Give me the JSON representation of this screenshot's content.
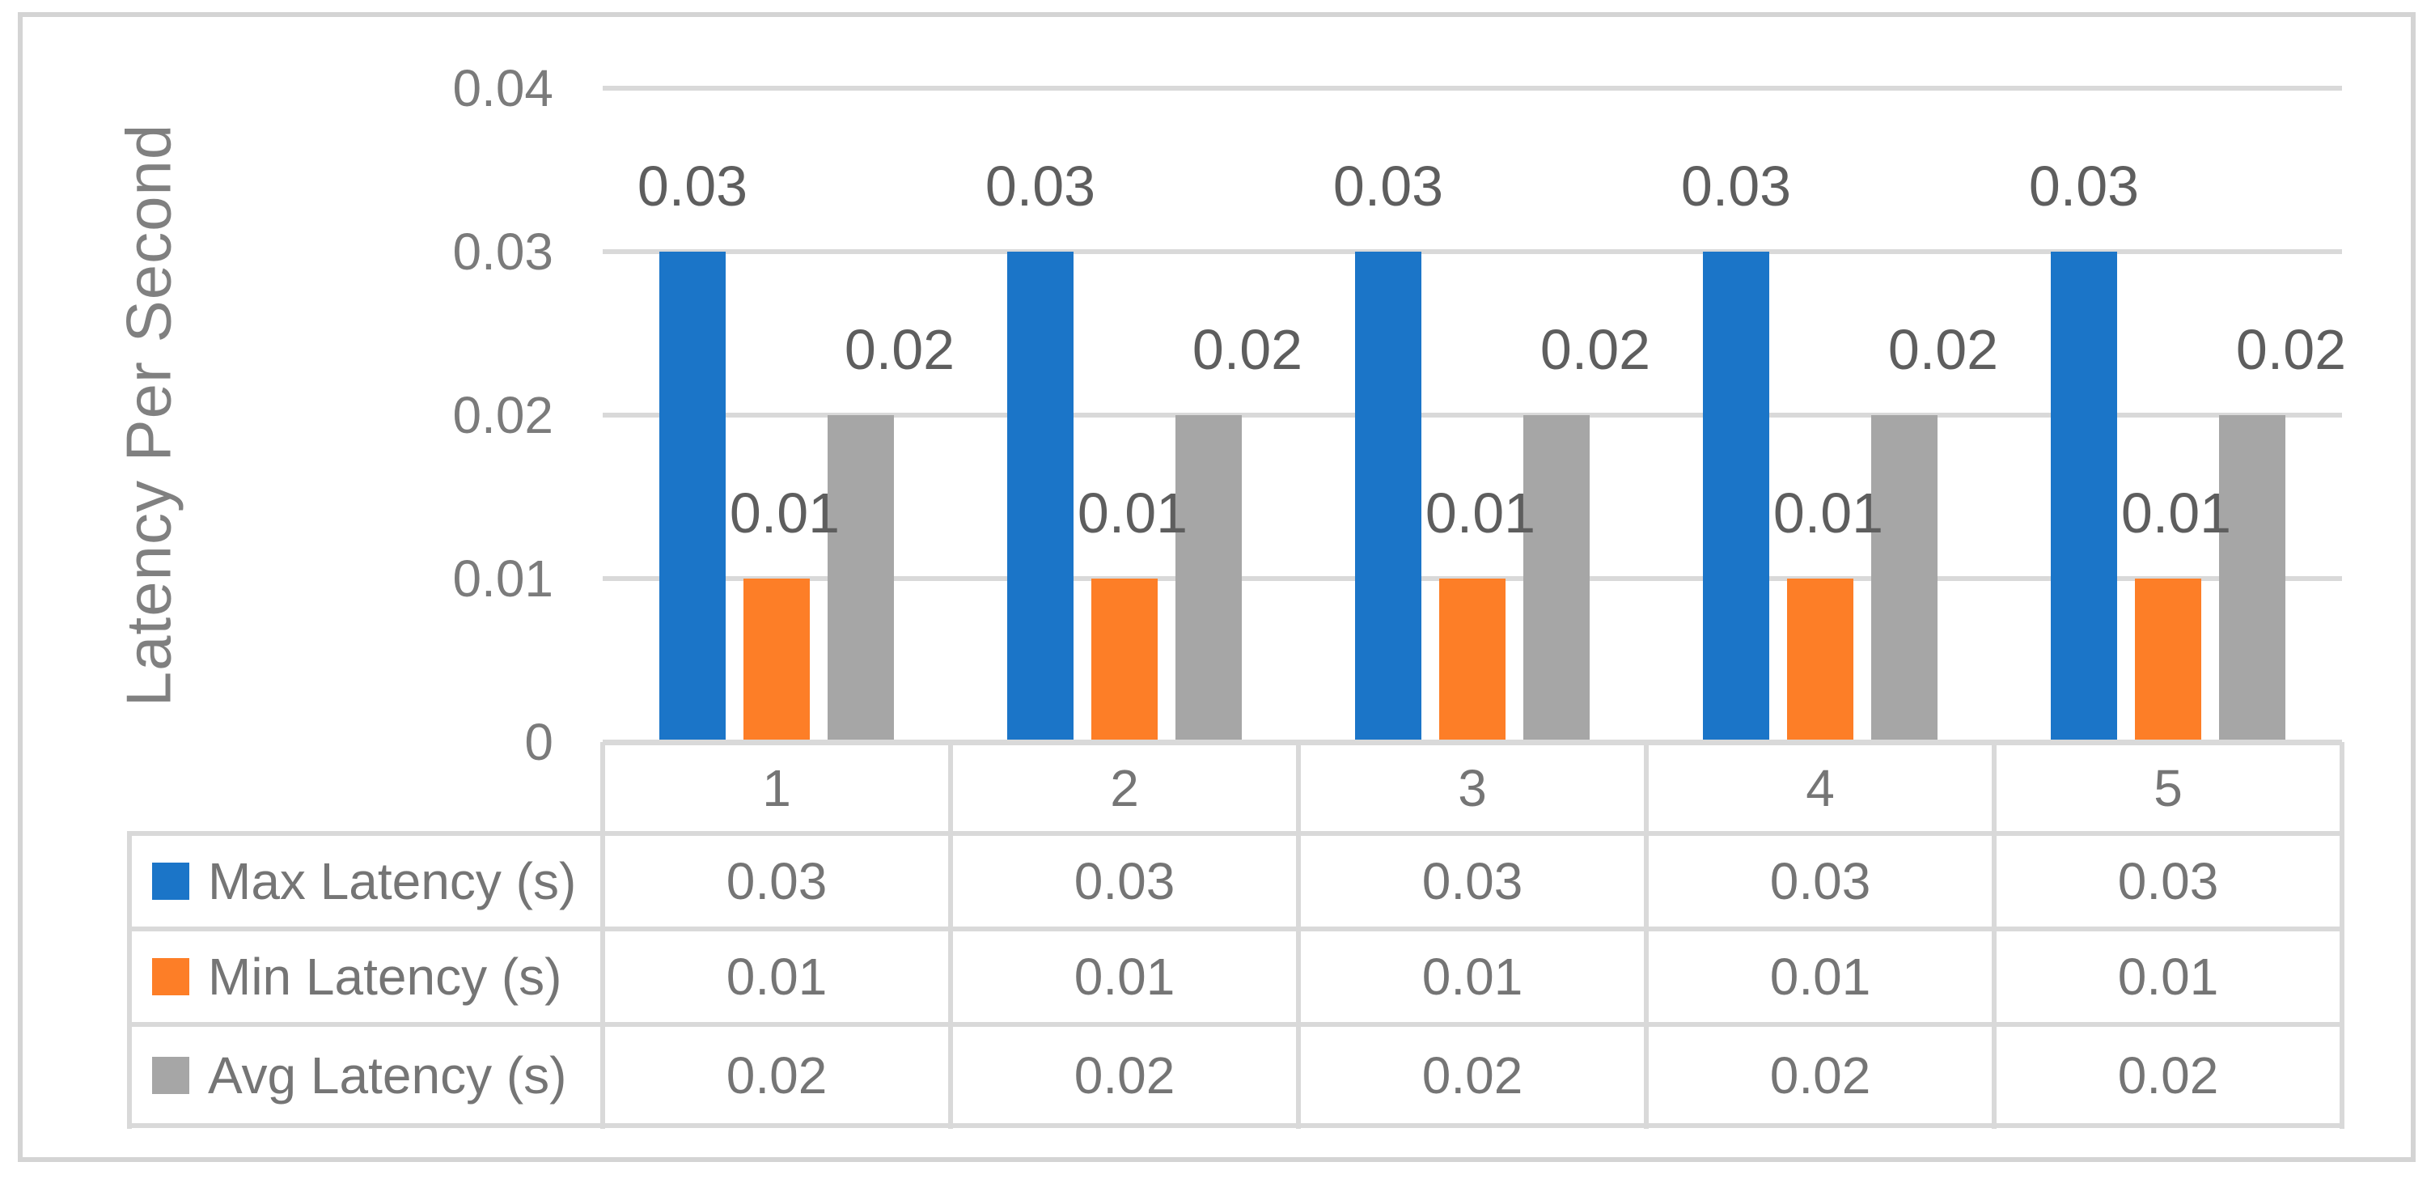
{
  "chart_data": {
    "type": "bar",
    "y_axis": {
      "title": "Latency Per Second",
      "tick_labels": [
        "0.04",
        "0.03",
        "0.02",
        "0.01",
        "0"
      ],
      "tick_values": [
        0.04,
        0.03,
        0.02,
        0.01,
        0
      ],
      "range": [
        0,
        0.04
      ],
      "grid": true
    },
    "categories": [
      "1",
      "2",
      "3",
      "4",
      "5"
    ],
    "series": [
      {
        "name": "Max Latency (s)",
        "color": "#1B75C8",
        "values": [
          0.03,
          0.03,
          0.03,
          0.03,
          0.03
        ],
        "data_label": "0.03"
      },
      {
        "name": "Min Latency (s)",
        "color": "#FD7E27",
        "values": [
          0.01,
          0.01,
          0.01,
          0.01,
          0.01
        ],
        "data_label": "0.01"
      },
      {
        "name": "Avg Latency (s)",
        "color": "#A6A6A6",
        "values": [
          0.02,
          0.02,
          0.02,
          0.02,
          0.02
        ],
        "data_label": "0.02"
      }
    ],
    "data_table": {
      "shown": true,
      "header_row": [
        "1",
        "2",
        "3",
        "4",
        "5"
      ],
      "rows": [
        {
          "label": "Max Latency (s)",
          "cells": [
            "0.03",
            "0.03",
            "0.03",
            "0.03",
            "0.03"
          ]
        },
        {
          "label": "Min Latency (s)",
          "cells": [
            "0.01",
            "0.01",
            "0.01",
            "0.01",
            "0.01"
          ]
        },
        {
          "label": "Avg Latency (s)",
          "cells": [
            "0.02",
            "0.02",
            "0.02",
            "0.02",
            "0.02"
          ]
        }
      ]
    },
    "legend_position": "data-table-left",
    "colors": {
      "grid": "#d9d9d9",
      "frame_border": "#d4d4d4",
      "tick_text": "#7b7b7b",
      "data_label_text": "#5e5e5e",
      "table_text": "#757575",
      "axis_title_text": "#808080"
    }
  }
}
